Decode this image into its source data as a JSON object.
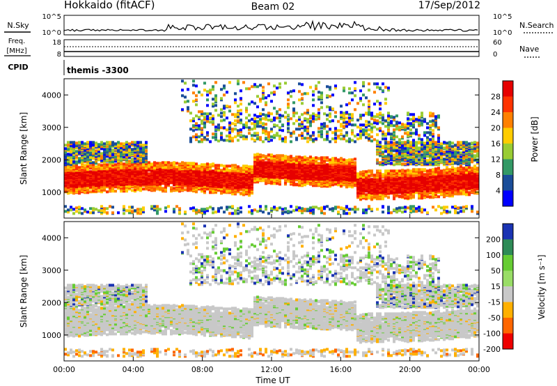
{
  "header": {
    "station": "Hokkaido (fitACF)",
    "beam": "Beam 02",
    "date": "17/Sep/2012"
  },
  "strips": {
    "nsky_label": "N.Sky",
    "nsky_ticks": [
      "10^5",
      "10^0"
    ],
    "nsearch_label": "N.Search",
    "freq_label_line1": "Freq.",
    "freq_label_line2": "[MHz]",
    "freq_ticks": [
      "18",
      "8"
    ],
    "nave_label": "Nave",
    "nave_ticks": [
      "60",
      "0"
    ],
    "cpid_label": "CPID",
    "cpid_value": "themis -3300"
  },
  "chart_data": [
    {
      "type": "heatmap",
      "title": "",
      "ylabel": "Slant Range [km]",
      "xlabel": "",
      "ylim": [
        200,
        4500
      ],
      "yticks": [
        1000,
        2000,
        3000,
        4000
      ],
      "x_ticks": [
        "00:00",
        "04:00",
        "08:00",
        "12:00",
        "16:00",
        "20:00",
        "00:00"
      ],
      "colorbar": {
        "label": "Power [dB]",
        "ticks": [
          "28",
          "24",
          "20",
          "16",
          "12",
          "8",
          "4"
        ],
        "colors": [
          "#e60000",
          "#ff3300",
          "#ff8000",
          "#ffcc00",
          "#99cc33",
          "#339966",
          "#1a4d99",
          "#0000ff"
        ]
      }
    },
    {
      "type": "heatmap",
      "title": "",
      "ylabel": "Slant Range [km]",
      "xlabel": "Time UT",
      "ylim": [
        200,
        4500
      ],
      "yticks": [
        1000,
        2000,
        3000,
        4000
      ],
      "x_ticks": [
        "00:00",
        "04:00",
        "08:00",
        "12:00",
        "16:00",
        "20:00",
        "00:00"
      ],
      "colorbar": {
        "label": "Velocity [m s⁻¹]",
        "ticks": [
          "200",
          "100",
          "50",
          "15",
          "-15",
          "-50",
          "-100",
          "-200"
        ],
        "colors": [
          "#1a33b3",
          "#2e8b57",
          "#66cc33",
          "#99dd66",
          "#c8c8c8",
          "#ffb000",
          "#ff6600",
          "#ee0000"
        ]
      }
    }
  ]
}
